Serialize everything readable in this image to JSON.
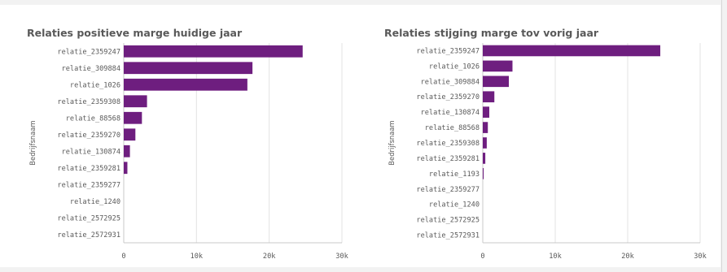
{
  "colors": {
    "bar": "#6e1e7f",
    "grid": "#e3e3e3",
    "axis": "#c8c8c8",
    "text": "#595959"
  },
  "chart_data": [
    {
      "type": "bar",
      "orientation": "horizontal",
      "title": "Relaties positieve marge huidige jaar",
      "ylabel": "Bedrijfsnaam",
      "xlabel": "",
      "categories": [
        "relatie_2359247",
        "relatie_309884",
        "relatie_1026",
        "relatie_2359308",
        "relatie_88568",
        "relatie_2359270",
        "relatie_130874",
        "relatie_2359281",
        "relatie_2359277",
        "relatie_1240",
        "relatie_2572925",
        "relatie_2572931"
      ],
      "values": [
        24600,
        17700,
        17000,
        3200,
        2500,
        1600,
        850,
        500,
        0,
        0,
        0,
        0
      ],
      "xlim": [
        0,
        30000
      ],
      "xticks": [
        0,
        10000,
        20000,
        30000
      ],
      "xtick_labels": [
        "0",
        "10k",
        "20k",
        "30k"
      ],
      "grid": true
    },
    {
      "type": "bar",
      "orientation": "horizontal",
      "title": "Relaties stijging marge tov vorig jaar",
      "ylabel": "Bedrijfsnaam",
      "xlabel": "",
      "categories": [
        "relatie_2359247",
        "relatie_1026",
        "relatie_309884",
        "relatie_2359270",
        "relatie_130874",
        "relatie_88568",
        "relatie_2359308",
        "relatie_2359281",
        "relatie_1193",
        "relatie_2359277",
        "relatie_1240",
        "relatie_2572925",
        "relatie_2572931"
      ],
      "values": [
        24500,
        4100,
        3600,
        1600,
        900,
        700,
        550,
        350,
        120,
        0,
        0,
        0,
        0
      ],
      "xlim": [
        0,
        30000
      ],
      "xticks": [
        0,
        10000,
        20000,
        30000
      ],
      "xtick_labels": [
        "0",
        "10k",
        "20k",
        "30k"
      ],
      "grid": true
    }
  ]
}
